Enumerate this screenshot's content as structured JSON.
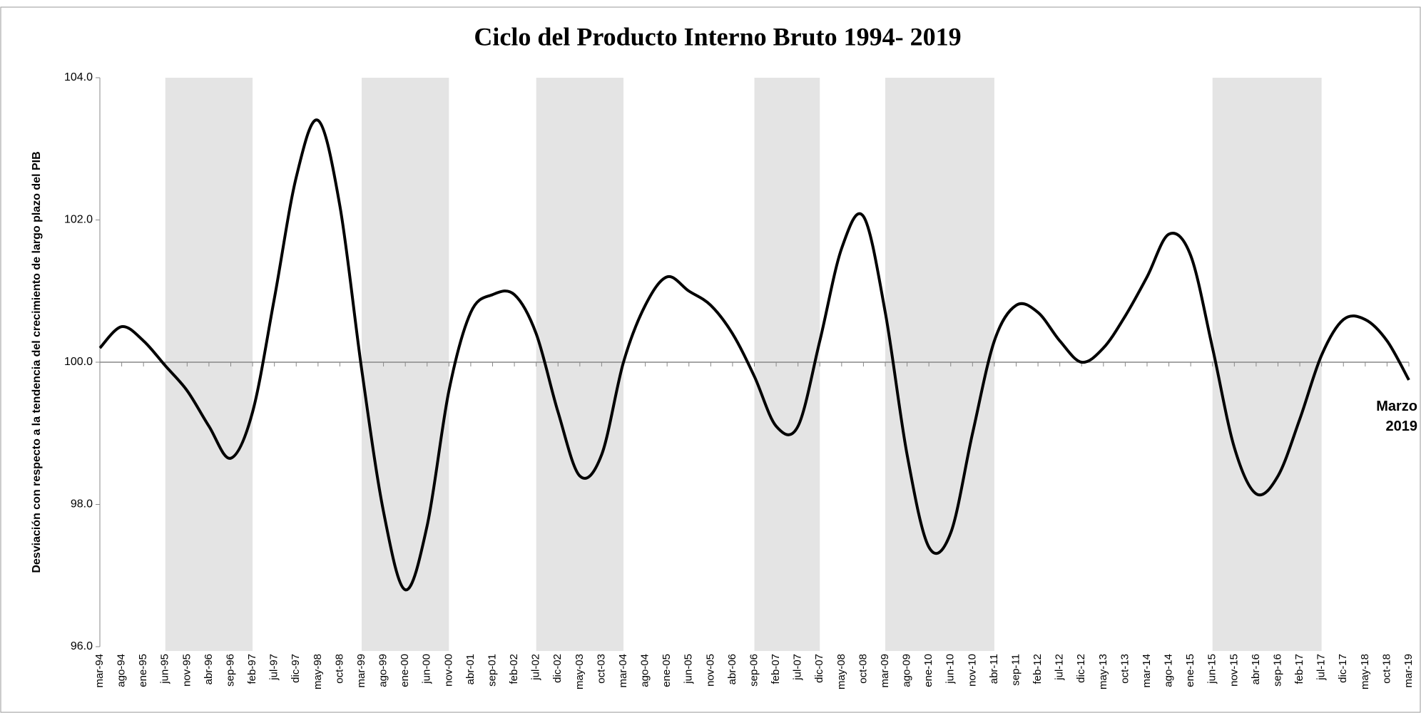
{
  "chart_data": {
    "type": "line",
    "title": "Ciclo del Producto Interno Bruto 1994- 2019",
    "y_label": "Desviación  con respecto a  la tendencia del crecimiento de largo plazo del PIB",
    "annotation": [
      "Marzo",
      "2019"
    ],
    "categories": [
      "mar-94",
      "ago-94",
      "ene-95",
      "jun-95",
      "nov-95",
      "abr-96",
      "sep-96",
      "feb-97",
      "jul-97",
      "dic-97",
      "may-98",
      "oct-98",
      "mar-99",
      "ago-99",
      "ene-00",
      "jun-00",
      "nov-00",
      "abr-01",
      "sep-01",
      "feb-02",
      "jul-02",
      "dic-02",
      "may-03",
      "oct-03",
      "mar-04",
      "ago-04",
      "ene-05",
      "jun-05",
      "nov-05",
      "abr-06",
      "sep-06",
      "feb-07",
      "jul-07",
      "dic-07",
      "may-08",
      "oct-08",
      "mar-09",
      "ago-09",
      "ene-10",
      "jun-10",
      "nov-10",
      "abr-11",
      "sep-11",
      "feb-12",
      "jul-12",
      "dic-12",
      "may-13",
      "oct-13",
      "mar-14",
      "ago-14",
      "ene-15",
      "jun-15",
      "nov-15",
      "abr-16",
      "sep-16",
      "feb-17",
      "jul-17",
      "dic-17",
      "may-18",
      "oct-18",
      "mar-19"
    ],
    "series": [
      {
        "name": "PIB",
        "color": "#000000",
        "values": [
          100.2,
          100.5,
          100.3,
          99.95,
          99.6,
          99.1,
          98.65,
          99.3,
          100.9,
          102.6,
          103.4,
          102.2,
          99.9,
          97.9,
          96.8,
          97.7,
          99.6,
          100.7,
          100.95,
          100.95,
          100.4,
          99.3,
          98.4,
          98.7,
          100.0,
          100.8,
          101.2,
          101.0,
          100.8,
          100.4,
          99.8,
          99.1,
          99.1,
          100.3,
          101.6,
          102.05,
          100.7,
          98.7,
          97.4,
          97.6,
          99.0,
          100.3,
          100.8,
          100.7,
          100.3,
          100.0,
          100.2,
          100.65,
          101.2,
          101.8,
          101.5,
          100.2,
          98.8,
          98.15,
          98.4,
          99.2,
          100.1,
          100.6,
          100.6,
          100.3,
          99.75
        ]
      }
    ],
    "shaded_periods": [
      [
        "jun-95",
        "feb-97"
      ],
      [
        "mar-99",
        "nov-00"
      ],
      [
        "jul-02",
        "mar-04"
      ],
      [
        "sep-06",
        "dic-07"
      ],
      [
        "mar-09",
        "abr-11"
      ],
      [
        "jun-15",
        "jul-17"
      ]
    ],
    "shade_color": "#e4e4e4",
    "reference_line": 100,
    "ylim": [
      96,
      104
    ],
    "yticks": [
      {
        "value": 96,
        "label": "96.0"
      },
      {
        "value": 98,
        "label": "98.0"
      },
      {
        "value": 100,
        "label": "100.0"
      },
      {
        "value": 102,
        "label": "102.0"
      },
      {
        "value": 104,
        "label": "104.0"
      }
    ]
  }
}
